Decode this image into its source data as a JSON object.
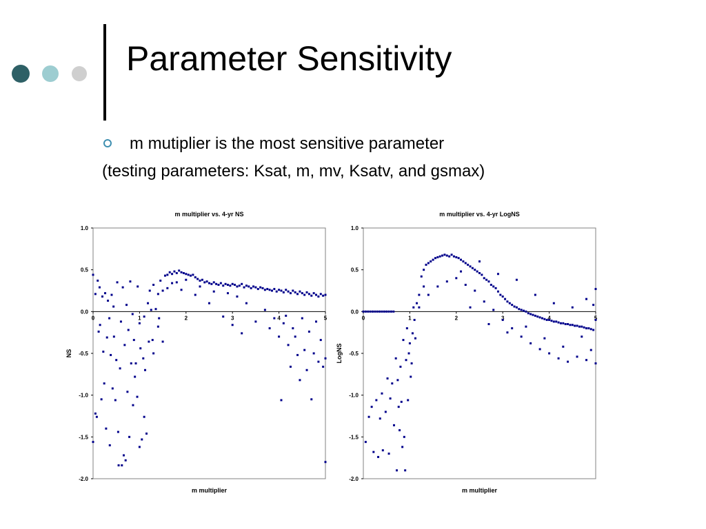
{
  "slide": {
    "title": "Parameter Sensitivity",
    "bullet": "m mutiplier is the most sensitive parameter",
    "subtext": "(testing parameters: Ksat, m, mv, Ksatv, and gsmax)",
    "decor_colors": [
      "#2e6066",
      "#9dcdd1",
      "#cfcfcf"
    ],
    "bullet_color": "#3e8fb0"
  },
  "chart_data": [
    {
      "type": "scatter",
      "title": "m multiplier vs. 4-yr NS",
      "xlabel": "m multiplier",
      "ylabel": "NS",
      "xlim": [
        0,
        5
      ],
      "ylim": [
        -2.0,
        1.0
      ],
      "xticks": [
        "0",
        "1",
        "2",
        "3",
        "4",
        "5"
      ],
      "yticks": [
        "1.0",
        "0.5",
        "0.0",
        "-0.5",
        "-1.0",
        "-1.5",
        "-2.0"
      ],
      "grid": false,
      "marker_color": "#00008b",
      "points": [
        [
          0.0,
          -1.56
        ],
        [
          0.0,
          0.44
        ],
        [
          0.05,
          -1.22
        ],
        [
          0.05,
          0.21
        ],
        [
          0.08,
          -1.26
        ],
        [
          0.1,
          0.37
        ],
        [
          0.12,
          -0.24
        ],
        [
          0.14,
          0.29
        ],
        [
          0.15,
          -0.16
        ],
        [
          0.18,
          -1.05
        ],
        [
          0.2,
          0.18
        ],
        [
          0.22,
          -0.48
        ],
        [
          0.24,
          -0.86
        ],
        [
          0.26,
          0.22
        ],
        [
          0.28,
          -1.4
        ],
        [
          0.3,
          -0.31
        ],
        [
          0.32,
          0.13
        ],
        [
          0.35,
          -0.08
        ],
        [
          0.36,
          -1.6
        ],
        [
          0.38,
          -0.52
        ],
        [
          0.4,
          0.2
        ],
        [
          0.42,
          -0.92
        ],
        [
          0.44,
          0.06
        ],
        [
          0.45,
          -0.3
        ],
        [
          0.48,
          -1.06
        ],
        [
          0.5,
          -0.58
        ],
        [
          0.52,
          0.35
        ],
        [
          0.54,
          -1.44
        ],
        [
          0.55,
          -1.84
        ],
        [
          0.58,
          -0.68
        ],
        [
          0.6,
          -0.12
        ],
        [
          0.62,
          -1.84
        ],
        [
          0.64,
          0.29
        ],
        [
          0.66,
          -1.72
        ],
        [
          0.68,
          -0.4
        ],
        [
          0.7,
          -1.78
        ],
        [
          0.72,
          0.08
        ],
        [
          0.74,
          -0.96
        ],
        [
          0.76,
          -0.22
        ],
        [
          0.78,
          -1.5
        ],
        [
          0.8,
          0.36
        ],
        [
          0.82,
          -0.62
        ],
        [
          0.85,
          -0.03
        ],
        [
          0.86,
          -1.12
        ],
        [
          0.88,
          -0.34
        ],
        [
          0.9,
          -0.78
        ],
        [
          0.92,
          -0.62
        ],
        [
          0.95,
          -1.02
        ],
        [
          0.96,
          0.3
        ],
        [
          1.0,
          -0.14
        ],
        [
          1.0,
          -1.62
        ],
        [
          1.02,
          -0.44
        ],
        [
          1.05,
          -1.53
        ],
        [
          1.08,
          -0.56
        ],
        [
          1.1,
          -1.26
        ],
        [
          1.1,
          -0.06
        ],
        [
          1.12,
          -0.7
        ],
        [
          1.15,
          -1.46
        ],
        [
          1.18,
          0.1
        ],
        [
          1.2,
          -0.36
        ],
        [
          1.22,
          0.25
        ],
        [
          1.25,
          0.02
        ],
        [
          1.28,
          -0.34
        ],
        [
          1.3,
          0.32
        ],
        [
          1.35,
          0.03
        ],
        [
          1.4,
          0.21
        ],
        [
          1.42,
          -0.08
        ],
        [
          1.45,
          0.37
        ],
        [
          1.5,
          0.25
        ],
        [
          1.55,
          0.43
        ],
        [
          1.6,
          0.44
        ],
        [
          1.65,
          0.47
        ],
        [
          1.7,
          0.45
        ],
        [
          1.75,
          0.48
        ],
        [
          1.8,
          0.46
        ],
        [
          1.85,
          0.49
        ],
        [
          1.9,
          0.47
        ],
        [
          1.95,
          0.46
        ],
        [
          2.0,
          0.45
        ],
        [
          2.05,
          0.44
        ],
        [
          2.1,
          0.43
        ],
        [
          2.15,
          0.44
        ],
        [
          2.2,
          0.41
        ],
        [
          2.25,
          0.39
        ],
        [
          2.3,
          0.37
        ],
        [
          2.35,
          0.38
        ],
        [
          2.4,
          0.35
        ],
        [
          2.45,
          0.36
        ],
        [
          2.5,
          0.34
        ],
        [
          2.55,
          0.33
        ],
        [
          2.6,
          0.35
        ],
        [
          2.65,
          0.33
        ],
        [
          2.7,
          0.32
        ],
        [
          2.75,
          0.34
        ],
        [
          2.8,
          0.31
        ],
        [
          2.85,
          0.33
        ],
        [
          2.9,
          0.32
        ],
        [
          2.95,
          0.31
        ],
        [
          3.0,
          0.33
        ],
        [
          3.05,
          0.32
        ],
        [
          3.1,
          0.3
        ],
        [
          3.15,
          0.31
        ],
        [
          3.2,
          0.33
        ],
        [
          3.25,
          0.29
        ],
        [
          3.3,
          0.31
        ],
        [
          3.35,
          0.3
        ],
        [
          3.4,
          0.28
        ],
        [
          3.45,
          0.3
        ],
        [
          3.5,
          0.29
        ],
        [
          3.55,
          0.27
        ],
        [
          3.6,
          0.29
        ],
        [
          3.65,
          0.28
        ],
        [
          3.7,
          0.26
        ],
        [
          3.75,
          0.27
        ],
        [
          3.8,
          0.26
        ],
        [
          3.85,
          0.25
        ],
        [
          3.9,
          0.27
        ],
        [
          3.95,
          0.24
        ],
        [
          4.0,
          0.26
        ],
        [
          4.05,
          0.25
        ],
        [
          4.1,
          0.23
        ],
        [
          4.15,
          0.26
        ],
        [
          4.2,
          0.24
        ],
        [
          4.25,
          0.22
        ],
        [
          4.3,
          0.25
        ],
        [
          4.35,
          0.23
        ],
        [
          4.4,
          0.21
        ],
        [
          4.45,
          0.24
        ],
        [
          4.5,
          0.22
        ],
        [
          4.55,
          0.2
        ],
        [
          4.6,
          0.23
        ],
        [
          4.65,
          0.21
        ],
        [
          4.7,
          0.19
        ],
        [
          4.75,
          0.22
        ],
        [
          4.8,
          0.2
        ],
        [
          4.85,
          0.18
        ],
        [
          4.9,
          0.21
        ],
        [
          4.95,
          0.19
        ],
        [
          5.0,
          0.2
        ],
        [
          1.6,
          0.28
        ],
        [
          1.8,
          0.35
        ],
        [
          2.0,
          0.38
        ],
        [
          2.3,
          0.3
        ],
        [
          2.6,
          0.24
        ],
        [
          2.9,
          0.22
        ],
        [
          3.1,
          0.18
        ],
        [
          3.3,
          0.1
        ],
        [
          3.5,
          -0.12
        ],
        [
          3.7,
          0.02
        ],
        [
          3.9,
          -0.08
        ],
        [
          4.0,
          -0.3
        ],
        [
          4.05,
          -1.06
        ],
        [
          4.1,
          -0.14
        ],
        [
          4.2,
          -0.4
        ],
        [
          4.25,
          -0.66
        ],
        [
          4.3,
          -0.2
        ],
        [
          4.4,
          -0.52
        ],
        [
          4.45,
          -0.82
        ],
        [
          4.5,
          -0.08
        ],
        [
          4.55,
          -0.46
        ],
        [
          4.6,
          -0.7
        ],
        [
          4.65,
          -0.24
        ],
        [
          4.7,
          -1.05
        ],
        [
          4.75,
          -0.5
        ],
        [
          4.8,
          -0.12
        ],
        [
          4.85,
          -0.6
        ],
        [
          4.9,
          -0.34
        ],
        [
          4.95,
          -0.66
        ],
        [
          5.0,
          -1.8
        ],
        [
          5.0,
          -0.56
        ],
        [
          3.2,
          -0.26
        ],
        [
          3.0,
          -0.16
        ],
        [
          2.8,
          -0.06
        ],
        [
          2.5,
          0.1
        ],
        [
          2.2,
          0.2
        ],
        [
          1.9,
          0.26
        ],
        [
          1.7,
          0.34
        ],
        [
          1.5,
          -0.36
        ],
        [
          1.4,
          -0.18
        ],
        [
          1.3,
          -0.5
        ],
        [
          3.8,
          -0.2
        ],
        [
          4.35,
          -0.3
        ],
        [
          4.15,
          -0.05
        ]
      ]
    },
    {
      "type": "scatter",
      "title": "m multiplier vs. 4-yr LogNS",
      "xlabel": "m multiplier",
      "ylabel": "LogNS",
      "xlim": [
        0,
        5
      ],
      "ylim": [
        -2.0,
        1.0
      ],
      "xticks": [
        "0",
        "1",
        "2",
        "3",
        "4",
        "5"
      ],
      "yticks": [
        "1.0",
        "0.5",
        "0.0",
        "-0.5",
        "-1.0",
        "-1.5",
        "-2.0"
      ],
      "grid": false,
      "marker_color": "#00008b",
      "points": [
        [
          0.0,
          0.0
        ],
        [
          0.05,
          0.0
        ],
        [
          0.1,
          0.0
        ],
        [
          0.15,
          0.0
        ],
        [
          0.2,
          0.0
        ],
        [
          0.25,
          0.0
        ],
        [
          0.3,
          0.0
        ],
        [
          0.35,
          0.0
        ],
        [
          0.4,
          0.0
        ],
        [
          0.45,
          0.0
        ],
        [
          0.5,
          0.0
        ],
        [
          0.55,
          0.0
        ],
        [
          0.6,
          0.0
        ],
        [
          0.65,
          0.0
        ],
        [
          0.05,
          -1.56
        ],
        [
          0.12,
          -1.26
        ],
        [
          0.18,
          -1.14
        ],
        [
          0.22,
          -1.68
        ],
        [
          0.28,
          -1.06
        ],
        [
          0.32,
          -1.74
        ],
        [
          0.36,
          -1.28
        ],
        [
          0.4,
          -0.98
        ],
        [
          0.42,
          -1.66
        ],
        [
          0.48,
          -1.2
        ],
        [
          0.52,
          -0.8
        ],
        [
          0.55,
          -1.7
        ],
        [
          0.58,
          -1.04
        ],
        [
          0.62,
          -0.86
        ],
        [
          0.66,
          -1.36
        ],
        [
          0.7,
          -0.56
        ],
        [
          0.72,
          -1.9
        ],
        [
          0.74,
          -0.82
        ],
        [
          0.76,
          -1.14
        ],
        [
          0.78,
          -1.42
        ],
        [
          0.8,
          -0.66
        ],
        [
          0.82,
          -1.08
        ],
        [
          0.84,
          -1.62
        ],
        [
          0.86,
          -0.34
        ],
        [
          0.88,
          -1.5
        ],
        [
          0.9,
          -1.9
        ],
        [
          0.92,
          -0.58
        ],
        [
          0.94,
          -0.2
        ],
        [
          0.96,
          -1.06
        ],
        [
          0.98,
          -0.5
        ],
        [
          1.0,
          -0.38
        ],
        [
          1.02,
          -0.78
        ],
        [
          1.04,
          -0.62
        ],
        [
          1.06,
          -0.26
        ],
        [
          1.08,
          0.05
        ],
        [
          1.1,
          -0.1
        ],
        [
          1.12,
          -0.32
        ],
        [
          1.15,
          0.1
        ],
        [
          1.2,
          0.2
        ],
        [
          1.25,
          0.42
        ],
        [
          1.3,
          0.5
        ],
        [
          1.35,
          0.56
        ],
        [
          1.4,
          0.58
        ],
        [
          1.45,
          0.6
        ],
        [
          1.5,
          0.62
        ],
        [
          1.55,
          0.64
        ],
        [
          1.6,
          0.65
        ],
        [
          1.65,
          0.66
        ],
        [
          1.7,
          0.67
        ],
        [
          1.75,
          0.68
        ],
        [
          1.8,
          0.67
        ],
        [
          1.85,
          0.66
        ],
        [
          1.9,
          0.68
        ],
        [
          1.95,
          0.66
        ],
        [
          2.0,
          0.65
        ],
        [
          2.05,
          0.64
        ],
        [
          2.1,
          0.62
        ],
        [
          2.15,
          0.6
        ],
        [
          2.2,
          0.58
        ],
        [
          2.25,
          0.56
        ],
        [
          2.3,
          0.54
        ],
        [
          2.35,
          0.52
        ],
        [
          2.4,
          0.5
        ],
        [
          2.45,
          0.48
        ],
        [
          2.5,
          0.46
        ],
        [
          2.55,
          0.44
        ],
        [
          2.6,
          0.4
        ],
        [
          2.65,
          0.38
        ],
        [
          2.7,
          0.36
        ],
        [
          2.75,
          0.32
        ],
        [
          2.8,
          0.3
        ],
        [
          2.85,
          0.28
        ],
        [
          2.9,
          0.24
        ],
        [
          2.95,
          0.2
        ],
        [
          3.0,
          0.18
        ],
        [
          3.05,
          0.15
        ],
        [
          3.1,
          0.12
        ],
        [
          3.15,
          0.1
        ],
        [
          3.2,
          0.08
        ],
        [
          3.25,
          0.06
        ],
        [
          3.3,
          0.05
        ],
        [
          3.35,
          0.03
        ],
        [
          3.4,
          0.02
        ],
        [
          3.45,
          0.01
        ],
        [
          3.5,
          0.0
        ],
        [
          3.55,
          -0.02
        ],
        [
          3.6,
          -0.03
        ],
        [
          3.65,
          -0.04
        ],
        [
          3.7,
          -0.05
        ],
        [
          3.75,
          -0.06
        ],
        [
          3.8,
          -0.07
        ],
        [
          3.85,
          -0.08
        ],
        [
          3.9,
          -0.09
        ],
        [
          3.95,
          -0.1
        ],
        [
          4.0,
          -0.1
        ],
        [
          4.05,
          -0.11
        ],
        [
          4.1,
          -0.12
        ],
        [
          4.15,
          -0.12
        ],
        [
          4.2,
          -0.13
        ],
        [
          4.25,
          -0.14
        ],
        [
          4.3,
          -0.14
        ],
        [
          4.35,
          -0.15
        ],
        [
          4.4,
          -0.15
        ],
        [
          4.45,
          -0.16
        ],
        [
          4.5,
          -0.16
        ],
        [
          4.55,
          -0.17
        ],
        [
          4.6,
          -0.17
        ],
        [
          4.65,
          -0.18
        ],
        [
          4.7,
          -0.18
        ],
        [
          4.75,
          -0.19
        ],
        [
          4.8,
          -0.2
        ],
        [
          4.85,
          -0.2
        ],
        [
          4.9,
          -0.21
        ],
        [
          4.95,
          -0.22
        ],
        [
          5.0,
          -0.1
        ],
        [
          1.4,
          0.2
        ],
        [
          1.6,
          0.3
        ],
        [
          1.8,
          0.36
        ],
        [
          2.0,
          0.4
        ],
        [
          2.2,
          0.32
        ],
        [
          2.4,
          0.25
        ],
        [
          2.6,
          0.12
        ],
        [
          2.8,
          0.02
        ],
        [
          3.0,
          -0.1
        ],
        [
          3.2,
          -0.2
        ],
        [
          3.4,
          -0.3
        ],
        [
          3.6,
          -0.38
        ],
        [
          3.8,
          -0.45
        ],
        [
          4.0,
          -0.5
        ],
        [
          4.2,
          -0.56
        ],
        [
          4.4,
          -0.6
        ],
        [
          4.6,
          -0.54
        ],
        [
          4.8,
          -0.58
        ],
        [
          5.0,
          -0.62
        ],
        [
          2.3,
          0.05
        ],
        [
          2.7,
          -0.15
        ],
        [
          3.1,
          -0.25
        ],
        [
          3.5,
          -0.18
        ],
        [
          3.9,
          -0.32
        ],
        [
          4.3,
          -0.42
        ],
        [
          4.7,
          -0.3
        ],
        [
          4.9,
          -0.46
        ],
        [
          5.0,
          0.27
        ],
        [
          4.95,
          0.08
        ],
        [
          1.3,
          0.3
        ],
        [
          1.2,
          0.05
        ],
        [
          2.1,
          0.48
        ],
        [
          2.5,
          0.6
        ],
        [
          2.9,
          0.45
        ],
        [
          3.3,
          0.38
        ],
        [
          3.7,
          0.2
        ],
        [
          4.1,
          0.1
        ],
        [
          4.5,
          0.05
        ],
        [
          4.8,
          0.15
        ]
      ]
    }
  ]
}
